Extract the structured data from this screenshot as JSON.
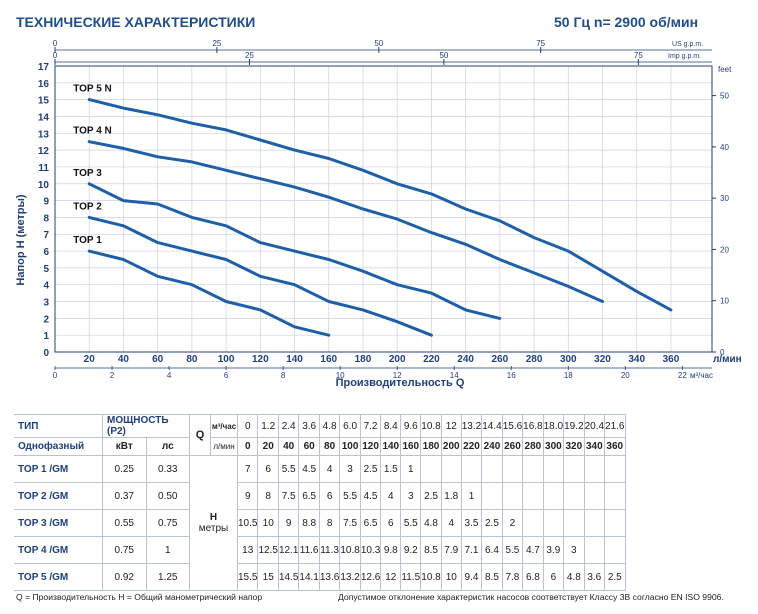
{
  "header": {
    "title": "ТЕХНИЧЕСКИЕ  ХАРАКТЕРИСТИКИ",
    "frequency": "50 Гц  n= 2900 об/мин"
  },
  "chart_data": {
    "type": "line",
    "ylabel": "Напор H (метры)",
    "xlabel": "Производительность  Q",
    "x_unit": "л/мин",
    "x_unit2": "м³/час",
    "x_ticks": [
      20,
      40,
      60,
      80,
      100,
      120,
      140,
      160,
      180,
      200,
      220,
      240,
      260,
      280,
      300,
      320,
      340,
      360
    ],
    "x_ticks_m3h": [
      0,
      2,
      4,
      6,
      8,
      10,
      12,
      14,
      16,
      18,
      20,
      22
    ],
    "top_axis_us": {
      "label": "US g.p.m.",
      "ticks": [
        0,
        25,
        50,
        75
      ]
    },
    "top_axis_imp": {
      "label": "Imp g.p.m.",
      "ticks": [
        0,
        25,
        50,
        75
      ]
    },
    "y_ticks": [
      0,
      1,
      2,
      3,
      4,
      5,
      6,
      7,
      8,
      9,
      10,
      11,
      12,
      13,
      14,
      15,
      16,
      17
    ],
    "y2_label": "feet",
    "y2_ticks": [
      0,
      10,
      20,
      30,
      40,
      50
    ],
    "ylim": [
      0,
      17
    ],
    "grid": true,
    "series": [
      {
        "name": "TOP 1",
        "x": [
          20,
          40,
          60,
          80,
          100,
          120,
          140,
          160
        ],
        "y": [
          6,
          5.5,
          4.5,
          4,
          3,
          2.5,
          1.5,
          1
        ]
      },
      {
        "name": "TOP 2",
        "x": [
          20,
          40,
          60,
          80,
          100,
          120,
          140,
          160,
          180,
          200,
          220
        ],
        "y": [
          8,
          7.5,
          6.5,
          6,
          5.5,
          4.5,
          4,
          3,
          2.5,
          1.8,
          1
        ]
      },
      {
        "name": "TOP 3",
        "x": [
          20,
          40,
          60,
          80,
          100,
          120,
          140,
          160,
          180,
          200,
          220,
          240,
          260
        ],
        "y": [
          10,
          9,
          8.8,
          8,
          7.5,
          6.5,
          6,
          5.5,
          4.8,
          4,
          3.5,
          2.5,
          2
        ]
      },
      {
        "name": "TOP 4 N",
        "x": [
          20,
          40,
          60,
          80,
          100,
          120,
          140,
          160,
          180,
          200,
          220,
          240,
          260,
          280,
          300,
          320
        ],
        "y": [
          12.5,
          12.1,
          11.6,
          11.3,
          10.8,
          10.3,
          9.8,
          9.2,
          8.5,
          7.9,
          7.1,
          6.4,
          5.5,
          4.7,
          3.9,
          3
        ]
      },
      {
        "name": "TOP 5 N",
        "x": [
          20,
          40,
          60,
          80,
          100,
          120,
          140,
          160,
          180,
          200,
          220,
          240,
          260,
          280,
          300,
          320,
          340,
          360
        ],
        "y": [
          15,
          14.5,
          14.1,
          13.6,
          13.2,
          12.6,
          12,
          11.5,
          10.8,
          10,
          9.4,
          8.5,
          7.8,
          6.8,
          6,
          4.8,
          3.6,
          2.5
        ]
      }
    ]
  },
  "table": {
    "col_type": "ТИП",
    "col_power": "МОЩНОСТЬ (P2)",
    "phase": "Однофазный",
    "kw": "кВт",
    "hp": "лс",
    "q_label": "Q",
    "unit_m3h": "м³/час",
    "unit_lmin": "л/мин",
    "h_label": "H",
    "h_unit": "метры",
    "q_m3h": [
      "0",
      "1.2",
      "2.4",
      "3.6",
      "4.8",
      "6.0",
      "7.2",
      "8.4",
      "9.6",
      "10.8",
      "12",
      "13.2",
      "14.4",
      "15.6",
      "16.8",
      "18.0",
      "19.2",
      "20.4",
      "21.6"
    ],
    "q_lmin": [
      "0",
      "20",
      "40",
      "60",
      "80",
      "100",
      "120",
      "140",
      "160",
      "180",
      "200",
      "220",
      "240",
      "260",
      "280",
      "300",
      "320",
      "340",
      "360"
    ],
    "rows": [
      {
        "type": "TOP 1 /GM",
        "kw": "0.25",
        "hp": "0.33",
        "h": [
          "7",
          "6",
          "5.5",
          "4.5",
          "4",
          "3",
          "2.5",
          "1.5",
          "1",
          "",
          "",
          "",
          "",
          "",
          "",
          "",
          "",
          "",
          ""
        ]
      },
      {
        "type": "TOP 2  /GM",
        "kw": "0.37",
        "hp": "0.50",
        "h": [
          "9",
          "8",
          "7.5",
          "6.5",
          "6",
          "5.5",
          "4.5",
          "4",
          "3",
          "2.5",
          "1.8",
          "1",
          "",
          "",
          "",
          "",
          "",
          "",
          ""
        ]
      },
      {
        "type": "TOP 3 /GM",
        "kw": "0.55",
        "hp": "0.75",
        "h": [
          "10.5",
          "10",
          "9",
          "8.8",
          "8",
          "7.5",
          "6.5",
          "6",
          "5.5",
          "4.8",
          "4",
          "3.5",
          "2.5",
          "2",
          "",
          "",
          "",
          "",
          ""
        ]
      },
      {
        "type": "TOP 4 /GM",
        "kw": "0.75",
        "hp": "1",
        "h": [
          "13",
          "12.5",
          "12.1",
          "11.6",
          "11.3",
          "10.8",
          "10.3",
          "9.8",
          "9.2",
          "8.5",
          "7.9",
          "7.1",
          "6.4",
          "5.5",
          "4.7",
          "3.9",
          "3",
          "",
          ""
        ]
      },
      {
        "type": "TOP 5 /GM",
        "kw": "0.92",
        "hp": "1.25",
        "h": [
          "15.5",
          "15",
          "14.5",
          "14.1",
          "13.6",
          "13.2",
          "12.6",
          "12",
          "11.5",
          "10.8",
          "10",
          "9.4",
          "8.5",
          "7.8",
          "6.8",
          "6",
          "4.8",
          "3.6",
          "2.5"
        ]
      }
    ]
  },
  "footer": {
    "legend": "Q = Производительность   H = Общий манометрический напор",
    "note": "Допустимое отклонение характеристик насосов соответствует Классу 3В согласно EN ISO 9906."
  },
  "colors": {
    "curve": "#1f5fa8",
    "text": "#1f3f7a",
    "grid": "#c9d2e0"
  }
}
